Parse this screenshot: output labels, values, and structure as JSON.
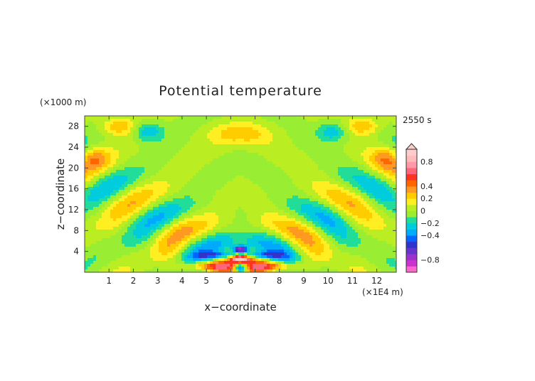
{
  "chart_data": {
    "type": "heatmap",
    "title": "Potential temperature",
    "xlabel": "x−coordinate",
    "ylabel": "z−coordinate",
    "x_unit": "(×1E4 m)",
    "y_unit": "(×1000 m)",
    "time_label": "2550 s",
    "xlim": [
      0,
      12.8
    ],
    "ylim": [
      0,
      30
    ],
    "x_ticks": [
      "1",
      "2",
      "3",
      "4",
      "5",
      "6",
      "7",
      "8",
      "9",
      "10",
      "11",
      "12"
    ],
    "y_ticks": [
      "4",
      "8",
      "12",
      "16",
      "20",
      "24",
      "28"
    ],
    "colorbar": {
      "labels": [
        "0.8",
        "0.4",
        "0.2",
        "0",
        "−0.2",
        "−0.4",
        "−0.8"
      ],
      "label_values": [
        0.8,
        0.4,
        0.2,
        0,
        -0.2,
        -0.4,
        -0.8
      ],
      "range": [
        -1,
        1
      ],
      "colors": [
        "#ff66cc",
        "#cc33cc",
        "#9933cc",
        "#6633cc",
        "#3333cc",
        "#0066ff",
        "#00aaff",
        "#00ccdd",
        "#22dd99",
        "#99ee33",
        "#bbee22",
        "#ffee22",
        "#ffcc00",
        "#ff9922",
        "#ff6600",
        "#ff3322",
        "#ff6677",
        "#ff99aa",
        "#ffbbbb",
        "#ffcccc"
      ]
    },
    "features": [
      {
        "x": 6.4,
        "z": 26.5,
        "value": 0.25,
        "sx": 0.9,
        "sz": 1.5
      },
      {
        "x": 1.4,
        "z": 28.0,
        "value": 0.3,
        "sx": 0.5,
        "sz": 1.2
      },
      {
        "x": 11.4,
        "z": 28.0,
        "value": 0.3,
        "sx": 0.5,
        "sz": 1.2
      },
      {
        "x": 2.6,
        "z": 27.0,
        "value": -0.3,
        "sx": 0.45,
        "sz": 1.3
      },
      {
        "x": 10.2,
        "z": 27.0,
        "value": -0.3,
        "sx": 0.45,
        "sz": 1.3
      },
      {
        "x": 5.0,
        "z": 1.2,
        "value": 0.5,
        "sx": 0.7,
        "sz": 0.6
      },
      {
        "x": 7.8,
        "z": 1.2,
        "value": 0.5,
        "sx": 0.7,
        "sz": 0.6
      },
      {
        "x": 5.5,
        "z": 3.3,
        "value": -0.4,
        "sx": 0.6,
        "sz": 0.5
      },
      {
        "x": 7.3,
        "z": 3.3,
        "value": -0.4,
        "sx": 0.6,
        "sz": 0.5
      },
      {
        "x": 6.4,
        "z": 1.0,
        "value": -0.8,
        "sx": 0.18,
        "sz": 0.6
      },
      {
        "x": 6.4,
        "z": 4.4,
        "value": -0.8,
        "sx": 0.2,
        "sz": 0.5
      },
      {
        "x": 6.4,
        "z": 2.6,
        "value": 0.8,
        "sx": 0.25,
        "sz": 0.5
      },
      {
        "x": 0.4,
        "z": 22.0,
        "value": 0.25,
        "sx": 0.4,
        "sz": 1.5
      },
      {
        "x": 12.4,
        "z": 22.0,
        "value": 0.25,
        "sx": 0.4,
        "sz": 1.5
      }
    ]
  }
}
